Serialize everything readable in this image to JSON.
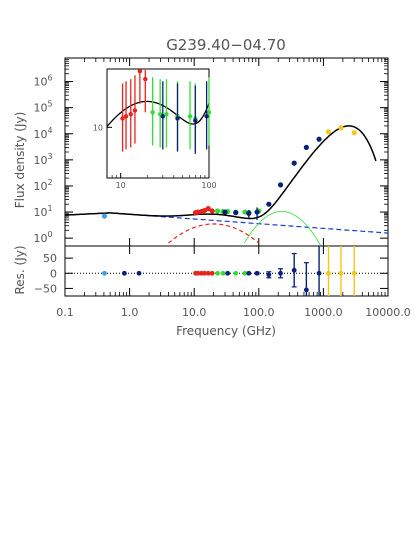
{
  "chart_data": {
    "type": "scatter",
    "title": "G239.40−04.70",
    "xlabel": "Frequency (GHz)",
    "ylabel_main": "Flux density (Jy)",
    "ylabel_resid": "Res. (Jy)",
    "xscale": "log",
    "yscale_main": "log",
    "xlim": [
      0.1,
      10000
    ],
    "ylim_main": [
      0.5,
      8000000
    ],
    "ylim_resid": [
      -75,
      90
    ],
    "x_tick_labels": [
      "0.1",
      "1.0",
      "10.0",
      "100.0",
      "1000.0",
      "10000.0"
    ],
    "y_tick_labels_main": [
      "10^0",
      "10^1",
      "10^2",
      "10^3",
      "10^4",
      "10^5",
      "10^6"
    ],
    "y_tick_labels_resid": [
      "50",
      "0",
      "−50"
    ],
    "colors": {
      "lightblue": "#3aa0e8",
      "navy": "#0a1f7a",
      "red": "#e8231c",
      "green": "#33dd33",
      "gold": "#f5c518",
      "model": "#000000"
    },
    "series": [
      {
        "color": "lightblue",
        "points": [
          {
            "x": 0.408,
            "y": 7.0,
            "err": 0.5
          }
        ]
      },
      {
        "color": "red",
        "points": [
          {
            "x": 10.5,
            "y": 9.5,
            "err": 1.5
          },
          {
            "x": 11.5,
            "y": 10.0,
            "err": 1.5
          },
          {
            "x": 13.0,
            "y": 10.5,
            "err": 1.5
          },
          {
            "x": 14.5,
            "y": 11.5,
            "err": 1.5
          },
          {
            "x": 16.5,
            "y": 13.5,
            "err": 1.5
          },
          {
            "x": 19.0,
            "y": 11.0,
            "err": 1.5
          }
        ]
      },
      {
        "color": "green",
        "points": [
          {
            "x": 23.0,
            "y": 11.0,
            "err": 1.5
          },
          {
            "x": 28.0,
            "y": 10.5,
            "err": 1.5
          },
          {
            "x": 33.0,
            "y": 10.5,
            "err": 1.5
          },
          {
            "x": 44.0,
            "y": 10.0,
            "err": 1.5
          },
          {
            "x": 61.0,
            "y": 10.0,
            "err": 1.5
          },
          {
            "x": 70.0,
            "y": 9.5,
            "err": 1.5
          },
          {
            "x": 100.0,
            "y": 11.0,
            "err": 1.5
          }
        ]
      },
      {
        "color": "navy",
        "points": [
          {
            "x": 1.4,
            "y": 0,
            "err": 0
          },
          {
            "x": 30.0,
            "y": 10.0,
            "err": 1.5
          },
          {
            "x": 44.0,
            "y": 9.5,
            "err": 1.5
          },
          {
            "x": 70.0,
            "y": 9.0,
            "err": 3
          },
          {
            "x": 94.0,
            "y": 10.0,
            "err": 5
          },
          {
            "x": 143.0,
            "y": 20.0,
            "err": 3
          },
          {
            "x": 217.0,
            "y": 110.0,
            "err": 10
          },
          {
            "x": 353.0,
            "y": 750.0,
            "err": 50
          },
          {
            "x": 545.0,
            "y": 3000.0,
            "err": 200
          },
          {
            "x": 857.0,
            "y": 6200.0,
            "err": 400
          }
        ]
      },
      {
        "color": "gold",
        "points": [
          {
            "x": 1200.0,
            "y": 12000.0,
            "err": 800
          },
          {
            "x": 1870.0,
            "y": 17000.0,
            "err": 1000
          },
          {
            "x": 3000.0,
            "y": 11000.0,
            "err": 800
          }
        ]
      }
    ],
    "model_components": [
      {
        "name": "total",
        "style": "solid",
        "color": "model"
      },
      {
        "name": "free-free",
        "style": "dashed",
        "color": "navy"
      },
      {
        "name": "spinning-dust",
        "style": "dashed",
        "color": "red"
      },
      {
        "name": "cmb",
        "style": "dashed",
        "color": "green"
      }
    ],
    "residuals": [
      {
        "x": 0.408,
        "y": 0,
        "err": 0,
        "color": "lightblue"
      },
      {
        "x": 0.83,
        "y": 0,
        "err": 0,
        "color": "navy"
      },
      {
        "x": 1.4,
        "y": 0,
        "err": 0,
        "color": "navy"
      },
      {
        "x": 10.5,
        "y": 0,
        "err": 0,
        "color": "red"
      },
      {
        "x": 11.5,
        "y": 0,
        "err": 0,
        "color": "red"
      },
      {
        "x": 13.0,
        "y": 0,
        "err": 0,
        "color": "red"
      },
      {
        "x": 14.5,
        "y": 0,
        "err": 0,
        "color": "red"
      },
      {
        "x": 16.5,
        "y": 0,
        "err": 0,
        "color": "red"
      },
      {
        "x": 19.0,
        "y": 0,
        "err": 0,
        "color": "red"
      },
      {
        "x": 23.0,
        "y": 0,
        "err": 0,
        "color": "green"
      },
      {
        "x": 28.0,
        "y": 0,
        "err": 0,
        "color": "green"
      },
      {
        "x": 33.0,
        "y": 0,
        "err": 0,
        "color": "navy"
      },
      {
        "x": 44.0,
        "y": 0,
        "err": 0,
        "color": "green"
      },
      {
        "x": 61.0,
        "y": 0,
        "err": 0,
        "color": "green"
      },
      {
        "x": 70.0,
        "y": 0,
        "err": 0,
        "color": "navy"
      },
      {
        "x": 94.0,
        "y": 0,
        "err": 3,
        "color": "navy"
      },
      {
        "x": 143.0,
        "y": -5,
        "err": 10,
        "color": "navy"
      },
      {
        "x": 217.0,
        "y": 0,
        "err": 15,
        "color": "navy"
      },
      {
        "x": 353.0,
        "y": 10,
        "err": 55,
        "color": "navy"
      },
      {
        "x": 545.0,
        "y": -55,
        "err": 90,
        "color": "navy"
      },
      {
        "x": 857.0,
        "y": 0,
        "err": 120,
        "color": "navy"
      },
      {
        "x": 1200.0,
        "y": 0,
        "err": 130,
        "color": "gold"
      },
      {
        "x": 1870.0,
        "y": 0,
        "err": 130,
        "color": "gold"
      },
      {
        "x": 3000.0,
        "y": 0,
        "err": 130,
        "color": "gold"
      }
    ],
    "inset": {
      "xlim": [
        7,
        100
      ],
      "ylim": [
        3,
        40
      ],
      "x_tick_labels": [
        "10",
        "100"
      ],
      "y_tick_labels": [
        "10"
      ]
    }
  }
}
